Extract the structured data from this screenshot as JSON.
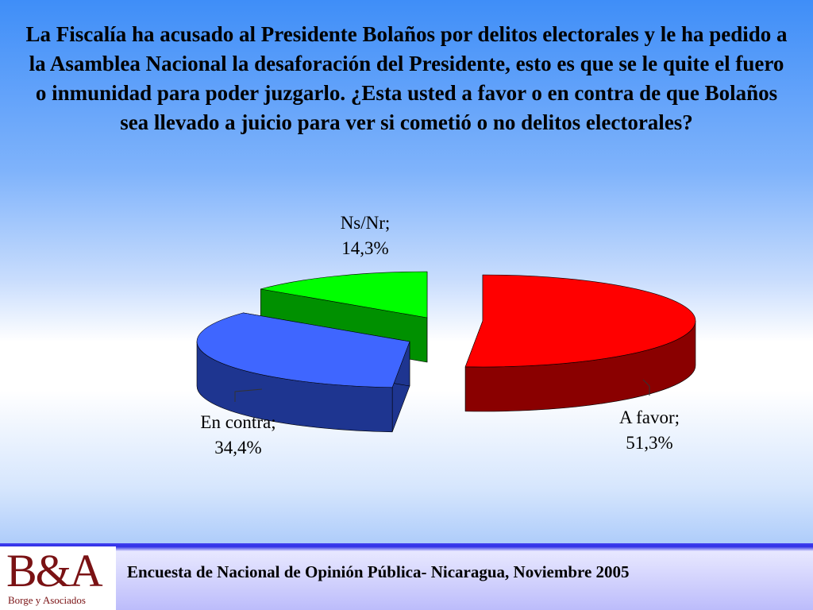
{
  "question": "La Fiscalía ha acusado al Presidente Bolaños por delitos electorales y le ha pedido a la Asamblea Nacional la desaforación del Presidente, esto es que se le quite el fuero o inmunidad para poder juzgarlo.  ¿Esta usted a favor o en contra de que Bolaños sea llevado a juicio para ver si cometió o no delitos electorales?",
  "chart_data": {
    "type": "pie",
    "title": "",
    "slices": [
      {
        "label": "A favor;",
        "value_label": "51,3%",
        "value": 51.3,
        "color": "#ff0000",
        "side_color": "#8a0000"
      },
      {
        "label": "En contra;",
        "value_label": "34,4%",
        "value": 34.4,
        "color": "#3f66ff",
        "side_color": "#1e3590"
      },
      {
        "label": "Ns/Nr;",
        "value_label": "14,3%",
        "value": 14.3,
        "color": "#00ff00",
        "side_color": "#009000"
      }
    ],
    "legend": "none",
    "style": "3d-exploded"
  },
  "footer": {
    "logo_text": "B&A",
    "logo_subtext": "Borge y Asociados",
    "source": "Encuesta de Nacional de Opinión Pública- Nicaragua, Noviembre 2005"
  }
}
